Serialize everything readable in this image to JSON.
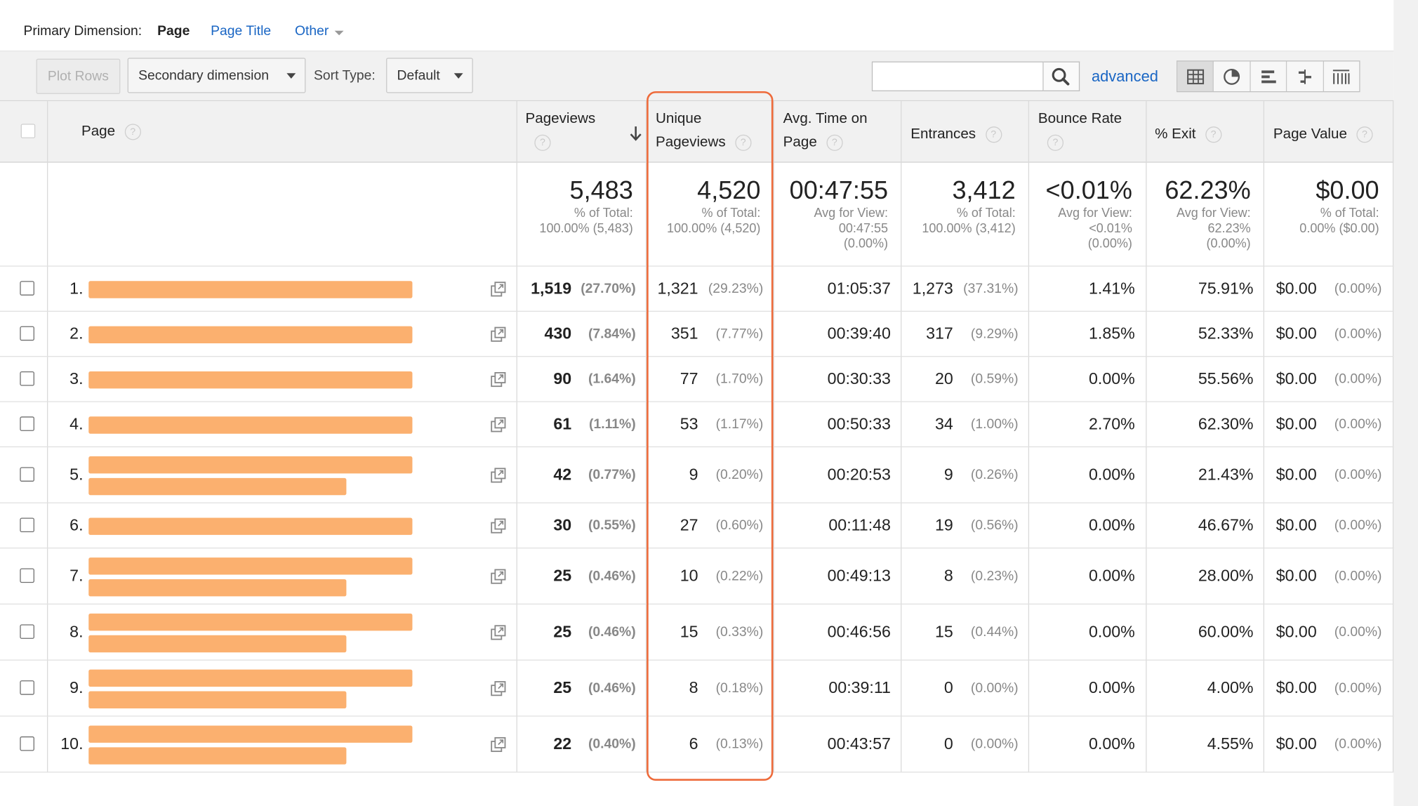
{
  "primary_dimension": {
    "label": "Primary Dimension:",
    "current": "Page",
    "options": [
      "Page Title",
      "Other"
    ]
  },
  "toolbar": {
    "plot_rows": "Plot Rows",
    "secondary_dimension": "Secondary dimension",
    "sort_type_label": "Sort Type:",
    "sort_type_value": "Default",
    "search_value": "",
    "advanced": "advanced",
    "view_icons": [
      "table-view-icon",
      "pie-view-icon",
      "performance-view-icon",
      "comparison-view-icon",
      "pivot-view-icon"
    ]
  },
  "columns": {
    "page": "Page",
    "pageviews": "Pageviews",
    "unique_pageviews": [
      "Unique",
      "Pageviews"
    ],
    "avg_time": [
      "Avg. Time on",
      "Page"
    ],
    "entrances": "Entrances",
    "bounce_rate": "Bounce Rate",
    "exit": "% Exit",
    "page_value": "Page Value",
    "help_glyph": "?"
  },
  "totals": {
    "pageviews": {
      "value": "5,483",
      "l1": "% of Total:",
      "l2": "100.00% (5,483)"
    },
    "unique": {
      "value": "4,520",
      "l1": "% of Total:",
      "l2": "100.00% (4,520)"
    },
    "avg_time": {
      "value": "00:47:55",
      "l1": "Avg for View:",
      "l2": "00:47:55",
      "l3": "(0.00%)"
    },
    "entrances": {
      "value": "3,412",
      "l1": "% of Total:",
      "l2": "100.00% (3,412)"
    },
    "bounce": {
      "value": "<0.01%",
      "l1": "Avg for View:",
      "l2": "<0.01%",
      "l3": "(0.00%)"
    },
    "exit": {
      "value": "62.23%",
      "l1": "Avg for View:",
      "l2": "62.23%",
      "l3": "(0.00%)"
    },
    "page_value": {
      "value": "$0.00",
      "l1": "% of Total:",
      "l2": "0.00% ($0.00)"
    }
  },
  "rows": [
    {
      "n": "1.",
      "pv": "1,519",
      "pv_pct": "(27.70%)",
      "up": "1,321",
      "up_pct": "(29.23%)",
      "time": "01:05:37",
      "ent": "1,273",
      "ent_pct": "(37.31%)",
      "bounce": "1.41%",
      "exit": "75.91%",
      "value": "$0.00",
      "value_pct": "(0.00%)"
    },
    {
      "n": "2.",
      "pv": "430",
      "pv_pct": "(7.84%)",
      "up": "351",
      "up_pct": "(7.77%)",
      "time": "00:39:40",
      "ent": "317",
      "ent_pct": "(9.29%)",
      "bounce": "1.85%",
      "exit": "52.33%",
      "value": "$0.00",
      "value_pct": "(0.00%)"
    },
    {
      "n": "3.",
      "pv": "90",
      "pv_pct": "(1.64%)",
      "up": "77",
      "up_pct": "(1.70%)",
      "time": "00:30:33",
      "ent": "20",
      "ent_pct": "(0.59%)",
      "bounce": "0.00%",
      "exit": "55.56%",
      "value": "$0.00",
      "value_pct": "(0.00%)"
    },
    {
      "n": "4.",
      "pv": "61",
      "pv_pct": "(1.11%)",
      "up": "53",
      "up_pct": "(1.17%)",
      "time": "00:50:33",
      "ent": "34",
      "ent_pct": "(1.00%)",
      "bounce": "2.70%",
      "exit": "62.30%",
      "value": "$0.00",
      "value_pct": "(0.00%)"
    },
    {
      "n": "5.",
      "pv": "42",
      "pv_pct": "(0.77%)",
      "up": "9",
      "up_pct": "(0.20%)",
      "time": "00:20:53",
      "ent": "9",
      "ent_pct": "(0.26%)",
      "bounce": "0.00%",
      "exit": "21.43%",
      "value": "$0.00",
      "value_pct": "(0.00%)"
    },
    {
      "n": "6.",
      "pv": "30",
      "pv_pct": "(0.55%)",
      "up": "27",
      "up_pct": "(0.60%)",
      "time": "00:11:48",
      "ent": "19",
      "ent_pct": "(0.56%)",
      "bounce": "0.00%",
      "exit": "46.67%",
      "value": "$0.00",
      "value_pct": "(0.00%)"
    },
    {
      "n": "7.",
      "pv": "25",
      "pv_pct": "(0.46%)",
      "up": "10",
      "up_pct": "(0.22%)",
      "time": "00:49:13",
      "ent": "8",
      "ent_pct": "(0.23%)",
      "bounce": "0.00%",
      "exit": "28.00%",
      "value": "$0.00",
      "value_pct": "(0.00%)"
    },
    {
      "n": "8.",
      "pv": "25",
      "pv_pct": "(0.46%)",
      "up": "15",
      "up_pct": "(0.33%)",
      "time": "00:46:56",
      "ent": "15",
      "ent_pct": "(0.44%)",
      "bounce": "0.00%",
      "exit": "60.00%",
      "value": "$0.00",
      "value_pct": "(0.00%)"
    },
    {
      "n": "9.",
      "pv": "25",
      "pv_pct": "(0.46%)",
      "up": "8",
      "up_pct": "(0.18%)",
      "time": "00:39:11",
      "ent": "0",
      "ent_pct": "(0.00%)",
      "bounce": "0.00%",
      "exit": "4.00%",
      "value": "$0.00",
      "value_pct": "(0.00%)"
    },
    {
      "n": "10.",
      "pv": "22",
      "pv_pct": "(0.40%)",
      "up": "6",
      "up_pct": "(0.13%)",
      "time": "00:43:57",
      "ent": "0",
      "ent_pct": "(0.00%)",
      "bounce": "0.00%",
      "exit": "4.55%",
      "value": "$0.00",
      "value_pct": "(0.00%)"
    }
  ],
  "colors": {
    "highlight": "#ee6a3a",
    "redaction_bar": "#fbb06f",
    "link": "#1a66c4"
  }
}
